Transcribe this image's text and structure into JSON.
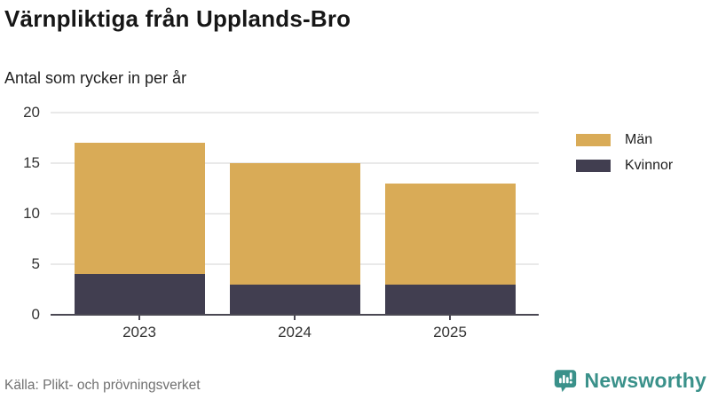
{
  "header": {
    "title": "Värnpliktiga från Upplands-Bro",
    "subtitle": "Antal som rycker in per år"
  },
  "footer": {
    "source": "Källa: Plikt- och prövningsverket",
    "brand": "Newsworthy"
  },
  "colors": {
    "men_gold": "#D9AB57",
    "women_dark": "#413E50",
    "gridline": "#E9E9E9",
    "axis": "#4A4853",
    "brand_teal": "#3A918A",
    "source_text": "#707070"
  },
  "icons": {
    "brand_logo": "newsworthy-speech-bubble-bar-chart-icon"
  },
  "chart_data": {
    "type": "bar",
    "stacked": true,
    "title": "Värnpliktiga från Upplands-Bro",
    "subtitle": "Antal som rycker in per år",
    "categories": [
      "2023",
      "2024",
      "2025"
    ],
    "series": [
      {
        "name": "Män",
        "color": "#D9AB57",
        "values": [
          13,
          12,
          10
        ]
      },
      {
        "name": "Kvinnor",
        "color": "#413E50",
        "values": [
          4,
          3,
          3
        ]
      }
    ],
    "totals": [
      17,
      15,
      13
    ],
    "xlabel": "",
    "ylabel": "",
    "ylim": [
      0,
      20
    ],
    "yticks": [
      0,
      5,
      10,
      15,
      20
    ],
    "grid": true,
    "legend_position": "right"
  }
}
